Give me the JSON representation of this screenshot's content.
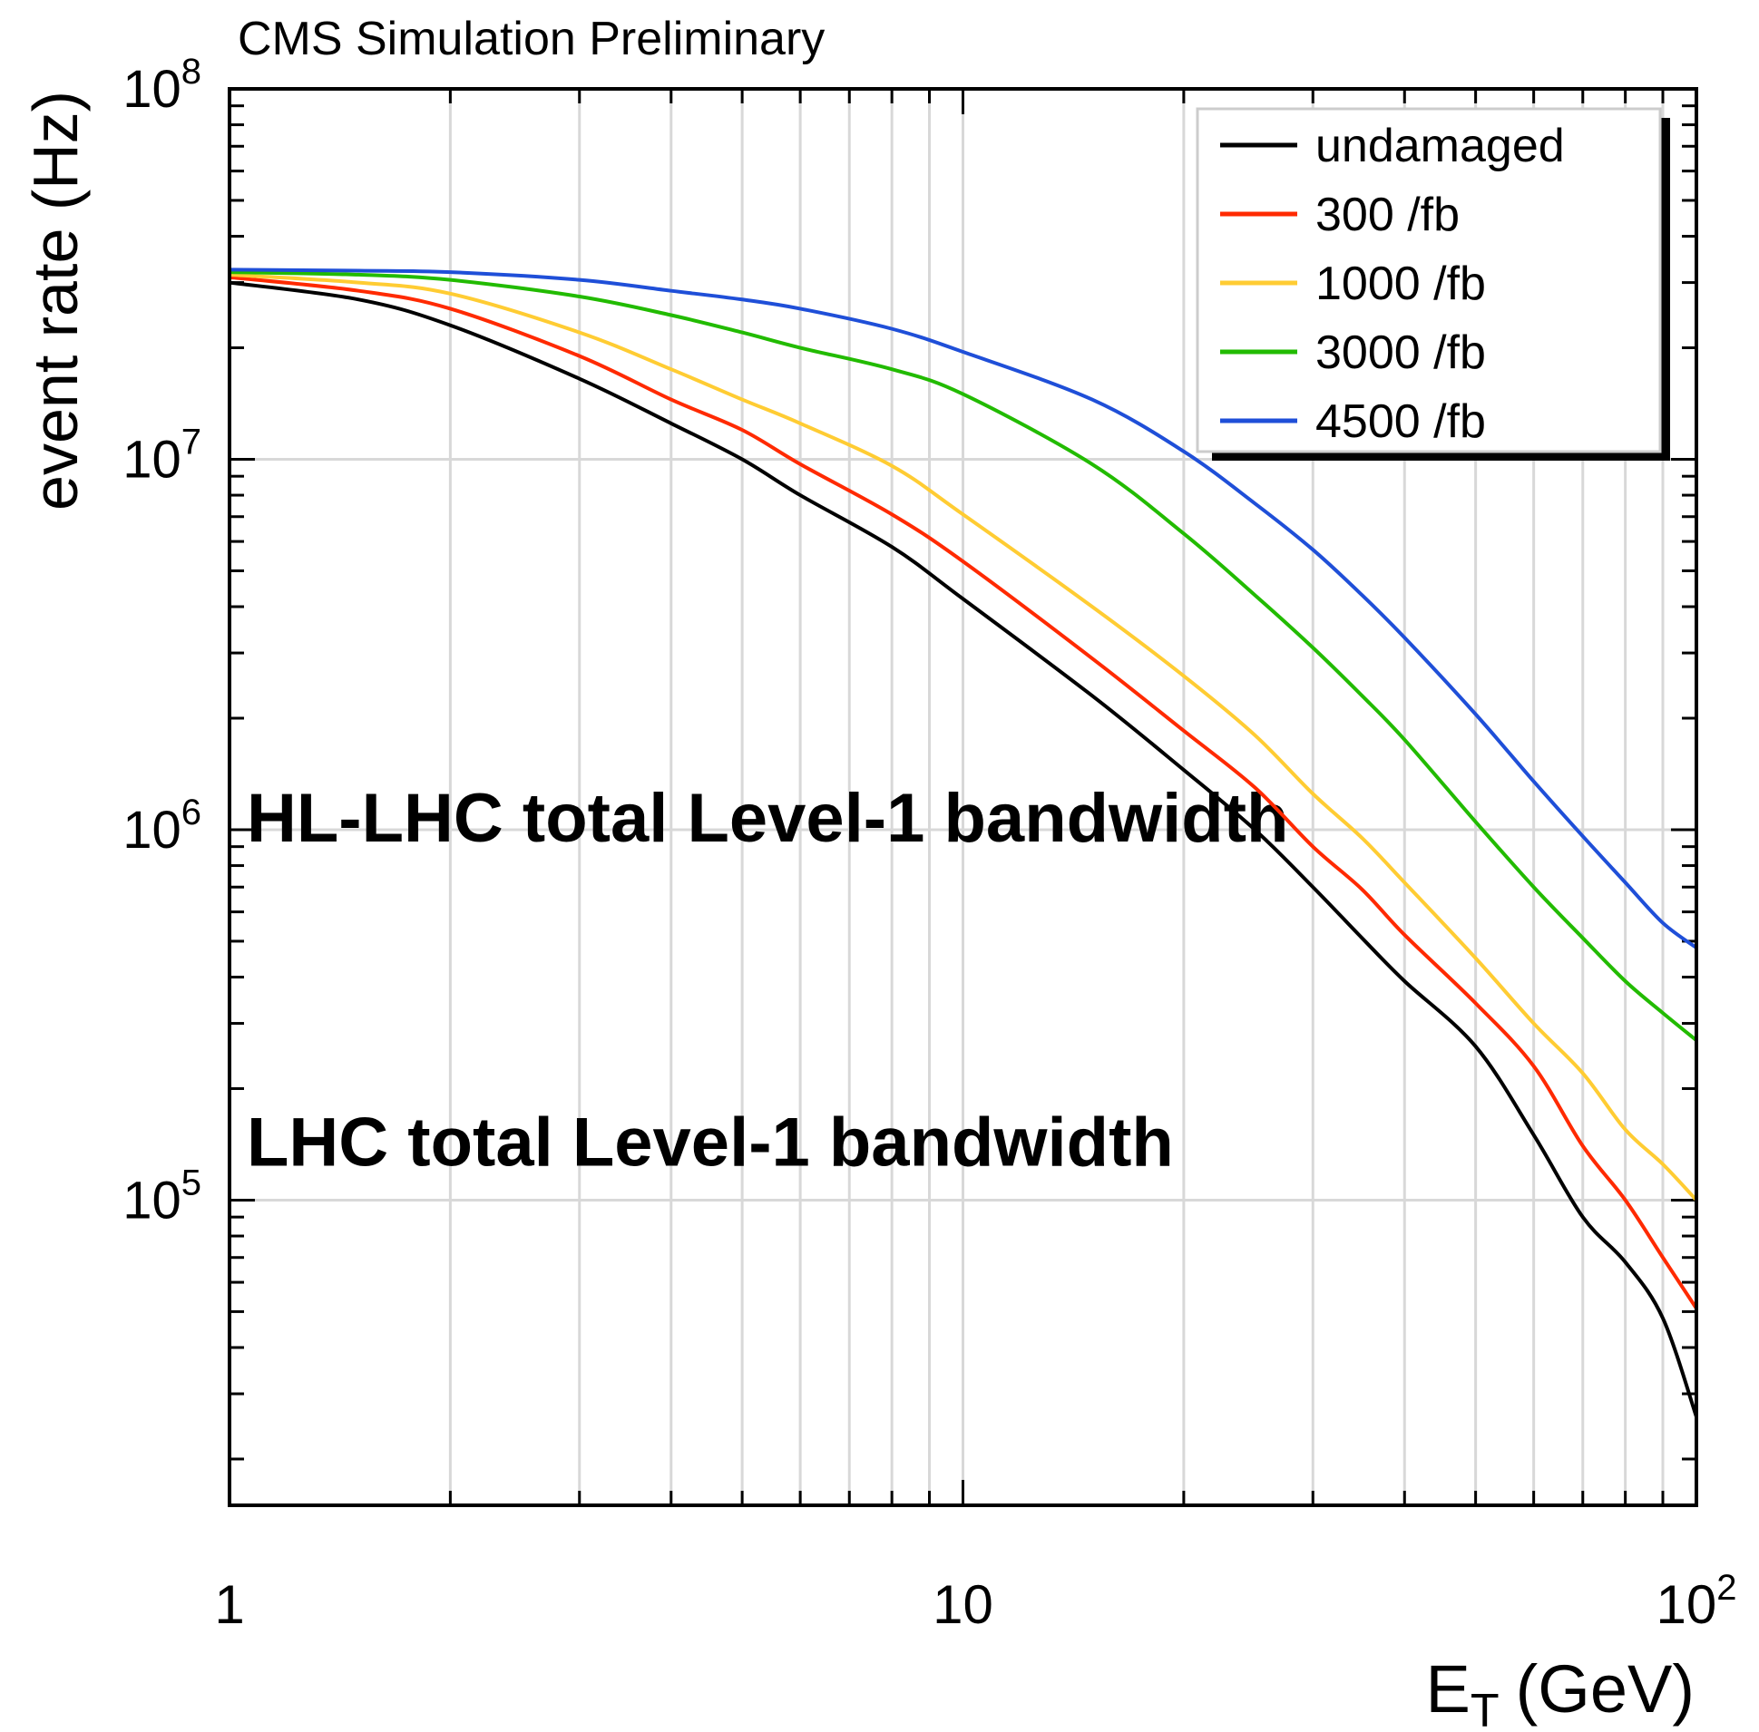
{
  "chart_data": {
    "type": "line",
    "title": "CMS Simulation Preliminary",
    "xlabel": "E",
    "xlabel_sub": "T",
    "xlabel_unit": "(GeV)",
    "ylabel": "event rate (Hz)",
    "xscale": "log",
    "yscale": "log",
    "xlim": [
      1,
      100
    ],
    "ylim": [
      15000,
      100000000
    ],
    "grid": true,
    "legend_position": "top-right",
    "x_ticks": [
      {
        "value": 1,
        "base": "1",
        "exp": ""
      },
      {
        "value": 10,
        "base": "10",
        "exp": ""
      },
      {
        "value": 100,
        "base": "10",
        "exp": "2"
      }
    ],
    "y_ticks": [
      {
        "value": 100000,
        "base": "10",
        "exp": "5"
      },
      {
        "value": 1000000,
        "base": "10",
        "exp": "6"
      },
      {
        "value": 10000000,
        "base": "10",
        "exp": "7"
      },
      {
        "value": 100000000,
        "base": "10",
        "exp": "8"
      }
    ],
    "x": [
      1,
      1.5,
      2,
      3,
      4,
      5,
      6,
      8,
      10,
      15,
      20,
      25,
      30,
      35,
      40,
      50,
      60,
      70,
      80,
      90,
      100
    ],
    "series": [
      {
        "name": "undamaged",
        "color": "#000000",
        "values": [
          30000000,
          27000000,
          23000000,
          16500000,
          12500000,
          10000000,
          8000000,
          5800000,
          4200000,
          2300000,
          1450000,
          1000000,
          700000,
          510000,
          390000,
          260000,
          150000,
          90000,
          68000,
          48000,
          26000
        ]
      },
      {
        "name": "300 /fb",
        "color": "#ff2a00",
        "values": [
          31000000,
          28500000,
          25500000,
          19000000,
          14500000,
          12000000,
          9700000,
          7100000,
          5300000,
          2900000,
          1850000,
          1300000,
          900000,
          690000,
          520000,
          340000,
          230000,
          140000,
          100000,
          70000,
          51000
        ]
      },
      {
        "name": "1000 /fb",
        "color": "#ffcc33",
        "values": [
          31500000,
          30000000,
          28000000,
          22000000,
          17500000,
          14500000,
          12500000,
          9600000,
          7100000,
          4000000,
          2600000,
          1800000,
          1250000,
          950000,
          720000,
          450000,
          300000,
          220000,
          155000,
          125000,
          100000
        ]
      },
      {
        "name": "3000 /fb",
        "color": "#22bb00",
        "values": [
          32000000,
          31500000,
          30500000,
          27500000,
          24500000,
          22000000,
          20000000,
          17500000,
          15000000,
          9700000,
          6300000,
          4300000,
          3100000,
          2300000,
          1750000,
          1050000,
          700000,
          510000,
          390000,
          320000,
          270000
        ]
      },
      {
        "name": "4500 /fb",
        "color": "#1f4fd8",
        "values": [
          32500000,
          32300000,
          32000000,
          30500000,
          28500000,
          27000000,
          25500000,
          22500000,
          19500000,
          14500000,
          10500000,
          7600000,
          5700000,
          4300000,
          3300000,
          2050000,
          1350000,
          960000,
          720000,
          560000,
          480000
        ]
      }
    ],
    "thresholds": [
      {
        "label": "HL-LHC total Level-1 bandwidth",
        "value": 750000,
        "color": "#ff2a00"
      },
      {
        "label": "LHC total Level-1 bandwidth",
        "value": 100000,
        "color": "#1565c0"
      }
    ]
  }
}
